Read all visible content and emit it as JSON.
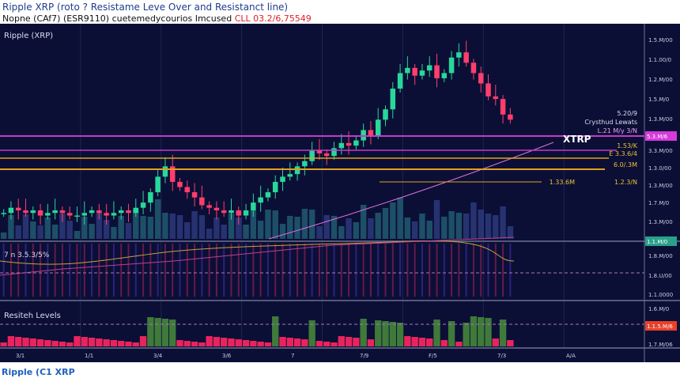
{
  "header": {
    "title": "Ripple XRP (roto ? Resistame Leve Over and Resistanct line)",
    "subtitle": "Nopne (CAf7) (ESR9110) cuetemedycourios Imcused",
    "subtitle_highlight": "CLL 03.2/6,75549",
    "highlight_color": "#e0202a"
  },
  "footer": "Ripple (C1 XRP",
  "chart_data": {
    "type": "candlestick",
    "title": "Ripple (XRP)",
    "close": [
      30,
      32,
      31,
      30,
      31,
      29,
      30,
      31,
      30,
      29,
      29,
      30,
      31,
      30,
      29,
      30,
      31,
      30,
      32,
      34,
      38,
      44,
      48,
      42,
      40,
      38,
      36,
      33,
      32,
      31,
      30,
      31,
      29,
      31,
      34,
      36,
      38,
      42,
      44,
      45,
      48,
      50,
      54,
      53,
      52,
      55,
      57,
      56,
      58,
      62,
      60,
      66,
      70,
      78,
      84,
      86,
      83,
      85,
      87,
      82,
      84,
      90,
      92,
      88,
      84,
      80,
      75,
      74,
      68,
      66
    ],
    "ylim": [
      20,
      100
    ],
    "y_tick_labels": [
      "1.5.M/00",
      "1.1.00/0",
      "1.2.M/00",
      "1.5.M/0",
      "1.3.M/00",
      "3.3.M/00",
      "1.3.0/00",
      "1.3.M/00",
      "1.7.M/0",
      "1.3.M/00",
      "1.8.M/00",
      "1.8.U/00",
      "1.1.0000",
      "1.6.M/0",
      "1.7.M/06"
    ],
    "price_tags": [
      {
        "label": "5.3.M/6",
        "color": "#d63adb"
      },
      {
        "label": "1.1.M/0",
        "color": "#2aa08a"
      },
      {
        "label": "1.1.5.M/6",
        "color": "#e8402a"
      }
    ],
    "x_tick_labels": [
      "3/1",
      "1/1",
      "3/4",
      "3/6",
      "7",
      "7/9",
      "F/5",
      "7/3",
      "A/A"
    ],
    "annotations": {
      "xrp": "XTRP",
      "crystal": "Crysthud Lewats",
      "c1": "5.20/9",
      "c2": "L.21 M/y 3/N",
      "lv1": "1.53/K",
      "lv2": "E 3.3.6/4",
      "lv3": "6.0/.3M",
      "lv4": "1.33.6M",
      "lv5": "1.2.3/N"
    },
    "levels": [
      {
        "name": "resistance",
        "color": "#c33bc9"
      },
      {
        "name": "support",
        "color": "#e0a020"
      }
    ],
    "indicator_label": "7 n 3.5.3/5%",
    "rsi_label": "Resiteh Levels"
  }
}
